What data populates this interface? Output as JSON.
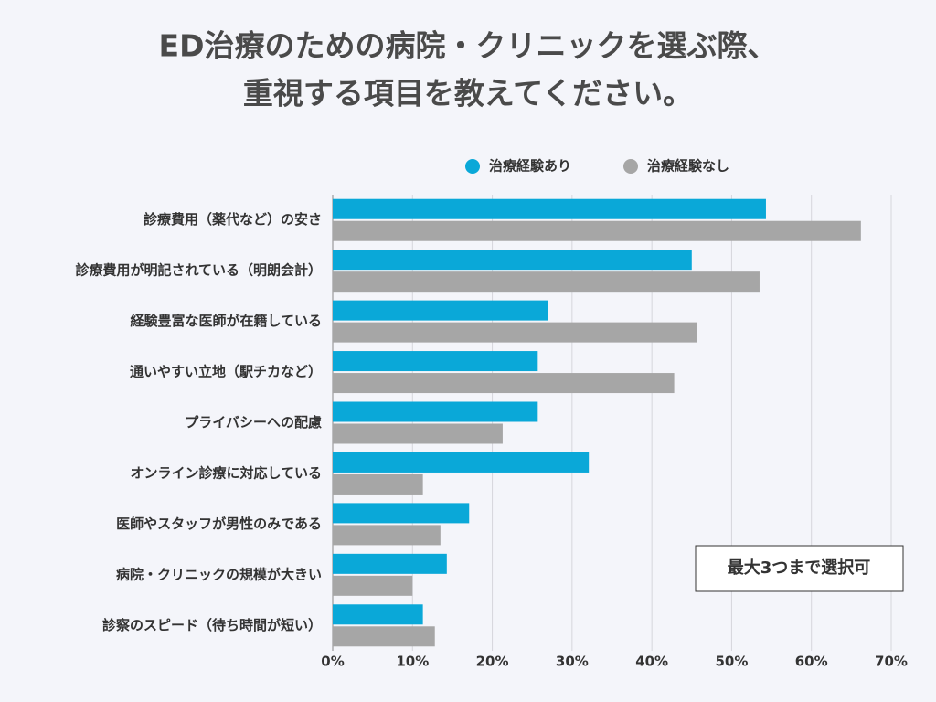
{
  "chart_data": {
    "type": "bar",
    "orientation": "horizontal",
    "title": [
      "ED治療のための病院・クリニックを選ぶ際、",
      "重視する項目を教えてください。"
    ],
    "annotation": "最大3つまで選択可",
    "categories": [
      "診療費用（薬代など）の安さ",
      "診療費用が明記されている（明朗会計）",
      "経験豊富な医師が在籍している",
      "通いやすい立地（駅チカなど）",
      "プライバシーへの配慮",
      "オンライン診療に対応している",
      "医師やスタッフが男性のみである",
      "病院・クリニックの規模が大きい",
      "診察のスピード（待ち時間が短い）"
    ],
    "series": [
      {
        "name": "治療経験あり",
        "color": "#0aa8d8",
        "values": [
          54.3,
          45.0,
          27.0,
          25.7,
          25.7,
          32.1,
          17.1,
          14.3,
          11.3
        ]
      },
      {
        "name": "治療経験なし",
        "color": "#a6a6a6",
        "values": [
          66.2,
          53.5,
          45.6,
          42.8,
          21.3,
          11.3,
          13.5,
          10.0,
          12.8
        ]
      }
    ],
    "xlim": [
      0,
      70
    ],
    "xticks": [
      {
        "value": 0,
        "label": "0%"
      },
      {
        "value": 10,
        "label": "10%"
      },
      {
        "value": 20,
        "label": "20%"
      },
      {
        "value": 30,
        "label": "30%"
      },
      {
        "value": 40,
        "label": "40%"
      },
      {
        "value": 50,
        "label": "50%"
      },
      {
        "value": 60,
        "label": "60%"
      },
      {
        "value": 70,
        "label": "70%"
      }
    ],
    "grid": true,
    "legend": "top"
  }
}
